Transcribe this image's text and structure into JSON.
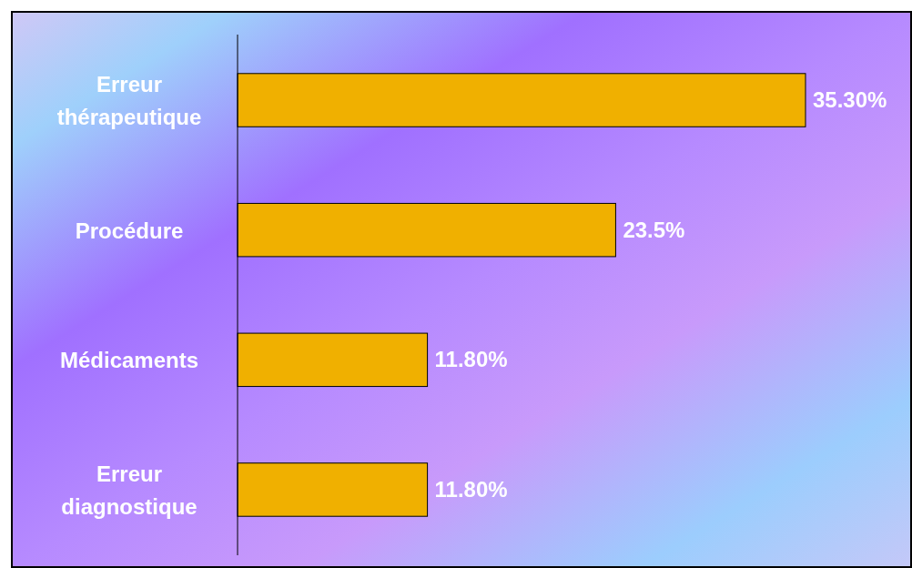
{
  "chart_data": {
    "type": "bar",
    "orientation": "horizontal",
    "categories": [
      "Erreur thérapeutique",
      "Procédure",
      "Médicaments",
      "Erreur diagnostique"
    ],
    "values": [
      35.3,
      23.5,
      11.8,
      11.8
    ],
    "value_labels": [
      "35.30%",
      "23.5%",
      "11.80%",
      "11.80%"
    ],
    "color": "#f0b000"
  }
}
